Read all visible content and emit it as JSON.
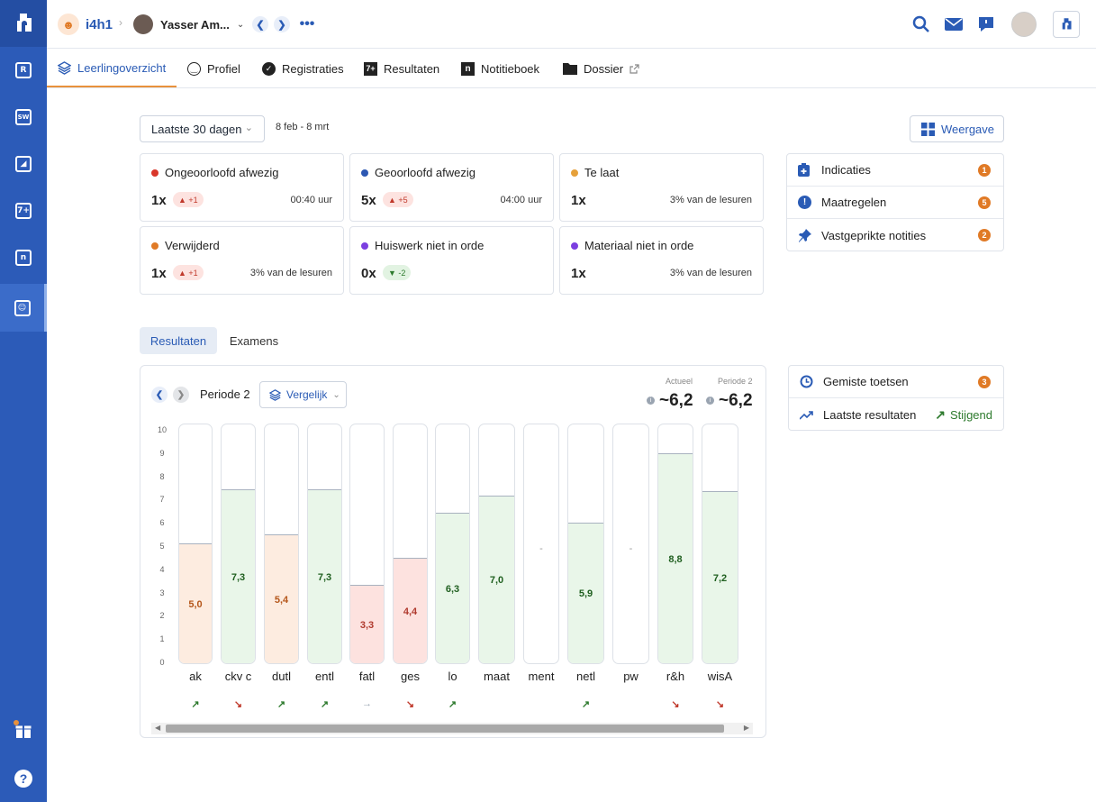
{
  "colors": {
    "rail": "#2c5bb8",
    "accent": "#2a5bb5",
    "orange": "#e8913b",
    "badge": "#e07a26",
    "green": "#2d7a2d",
    "red": "#c0392b"
  },
  "header": {
    "group": "i4h1",
    "student": "Yasser Am..."
  },
  "tabs": [
    {
      "label": "Leerlingoverzicht",
      "icon": "layers-icon"
    },
    {
      "label": "Profiel",
      "icon": "smiley-icon"
    },
    {
      "label": "Registraties",
      "icon": "check-circle-icon"
    },
    {
      "label": "Resultaten",
      "icon": "grade-icon"
    },
    {
      "label": "Notitieboek",
      "icon": "notebook-icon"
    },
    {
      "label": "Dossier",
      "icon": "folder-icon"
    }
  ],
  "filter": {
    "period": "Laatste 30 dagen",
    "range": "8 feb - 8 mrt",
    "view": "Weergave"
  },
  "registrations": [
    {
      "title": "Ongeoorloofd afwezig",
      "color": "#d9372b",
      "count": "1x",
      "delta": "▲ +1",
      "trend": "up",
      "right": "00:40 uur"
    },
    {
      "title": "Geoorloofd afwezig",
      "color": "#2d58b3",
      "count": "5x",
      "delta": "▲ +5",
      "trend": "up",
      "right": "04:00 uur"
    },
    {
      "title": "Te laat",
      "color": "#e6a13b",
      "count": "1x",
      "delta": "",
      "trend": "",
      "right": "3% van de lesuren"
    },
    {
      "title": "Verwijderd",
      "color": "#e07a26",
      "count": "1x",
      "delta": "▲ +1",
      "trend": "up",
      "right": "3% van de lesuren"
    },
    {
      "title": "Huiswerk niet in orde",
      "color": "#7b3fe0",
      "count": "0x",
      "delta": "▼ -2",
      "trend": "down",
      "right": ""
    },
    {
      "title": "Materiaal niet in orde",
      "color": "#7b3fe0",
      "count": "1x",
      "delta": "",
      "trend": "",
      "right": "3% van de lesuren"
    }
  ],
  "side1": [
    {
      "label": "Indicaties",
      "badge": "1",
      "icon": "clipboard-plus-icon"
    },
    {
      "label": "Maatregelen",
      "badge": "5",
      "icon": "alert-icon"
    },
    {
      "label": "Vastgeprikte notities",
      "badge": "2",
      "icon": "pin-icon"
    }
  ],
  "results": {
    "tabs": [
      "Resultaten",
      "Examens"
    ],
    "period": "Periode 2",
    "compare": "Vergelijk",
    "actueel_label": "Actueel",
    "actueel_value": "~6,2",
    "periode_label": "Periode 2",
    "periode_value": "~6,2"
  },
  "side2": [
    {
      "label": "Gemiste toetsen",
      "badge": "3",
      "icon": "clock-icon"
    },
    {
      "label": "Laatste resultaten",
      "trend": "Stijgend",
      "icon": "trend-icon"
    }
  ],
  "chart_data": {
    "type": "bar",
    "ylim": [
      0,
      10
    ],
    "yticks": [
      "0",
      "1",
      "2",
      "3",
      "4",
      "5",
      "6",
      "7",
      "8",
      "9",
      "10"
    ],
    "categories": [
      "ak",
      "ckv c",
      "dutl",
      "entl",
      "fatl",
      "ges",
      "lo",
      "maat",
      "ment",
      "netl",
      "pw",
      "r&h",
      "wisA"
    ],
    "values": [
      5.0,
      7.3,
      5.4,
      7.3,
      3.3,
      4.4,
      6.3,
      7.0,
      null,
      5.9,
      null,
      8.8,
      7.2
    ],
    "labels": [
      "5,0",
      "7,3",
      "5,4",
      "7,3",
      "3,3",
      "4,4",
      "6,3",
      "7,0",
      "-",
      "5,9",
      "-",
      "8,8",
      "7,2"
    ],
    "trends": [
      "up",
      "down",
      "up",
      "up",
      "neutral",
      "down",
      "up",
      "",
      "",
      "up",
      "",
      "down",
      "down"
    ]
  }
}
